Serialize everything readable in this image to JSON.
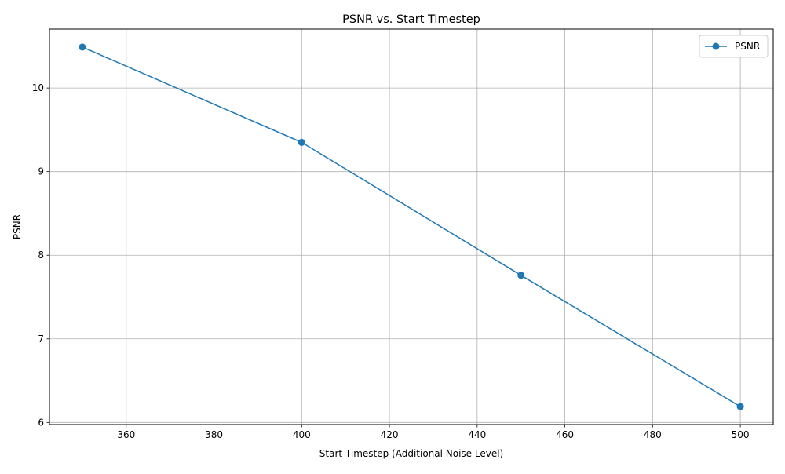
{
  "chart_data": {
    "type": "line",
    "title": "PSNR vs. Start Timestep",
    "xlabel": "Start Timestep (Additional Noise Level)",
    "ylabel": "PSNR",
    "x": [
      350,
      400,
      450,
      500
    ],
    "series": [
      {
        "name": "PSNR",
        "values": [
          10.49,
          9.35,
          7.76,
          6.19
        ],
        "color": "#1f77b4",
        "marker": "circle"
      }
    ],
    "xlim": [
      342.5,
      507.5
    ],
    "ylim": [
      5.975,
      10.705
    ],
    "xticks": [
      360,
      380,
      400,
      420,
      440,
      460,
      480,
      500
    ],
    "yticks": [
      6,
      7,
      8,
      9,
      10
    ],
    "grid": true,
    "legend": {
      "position": "upper right"
    }
  }
}
